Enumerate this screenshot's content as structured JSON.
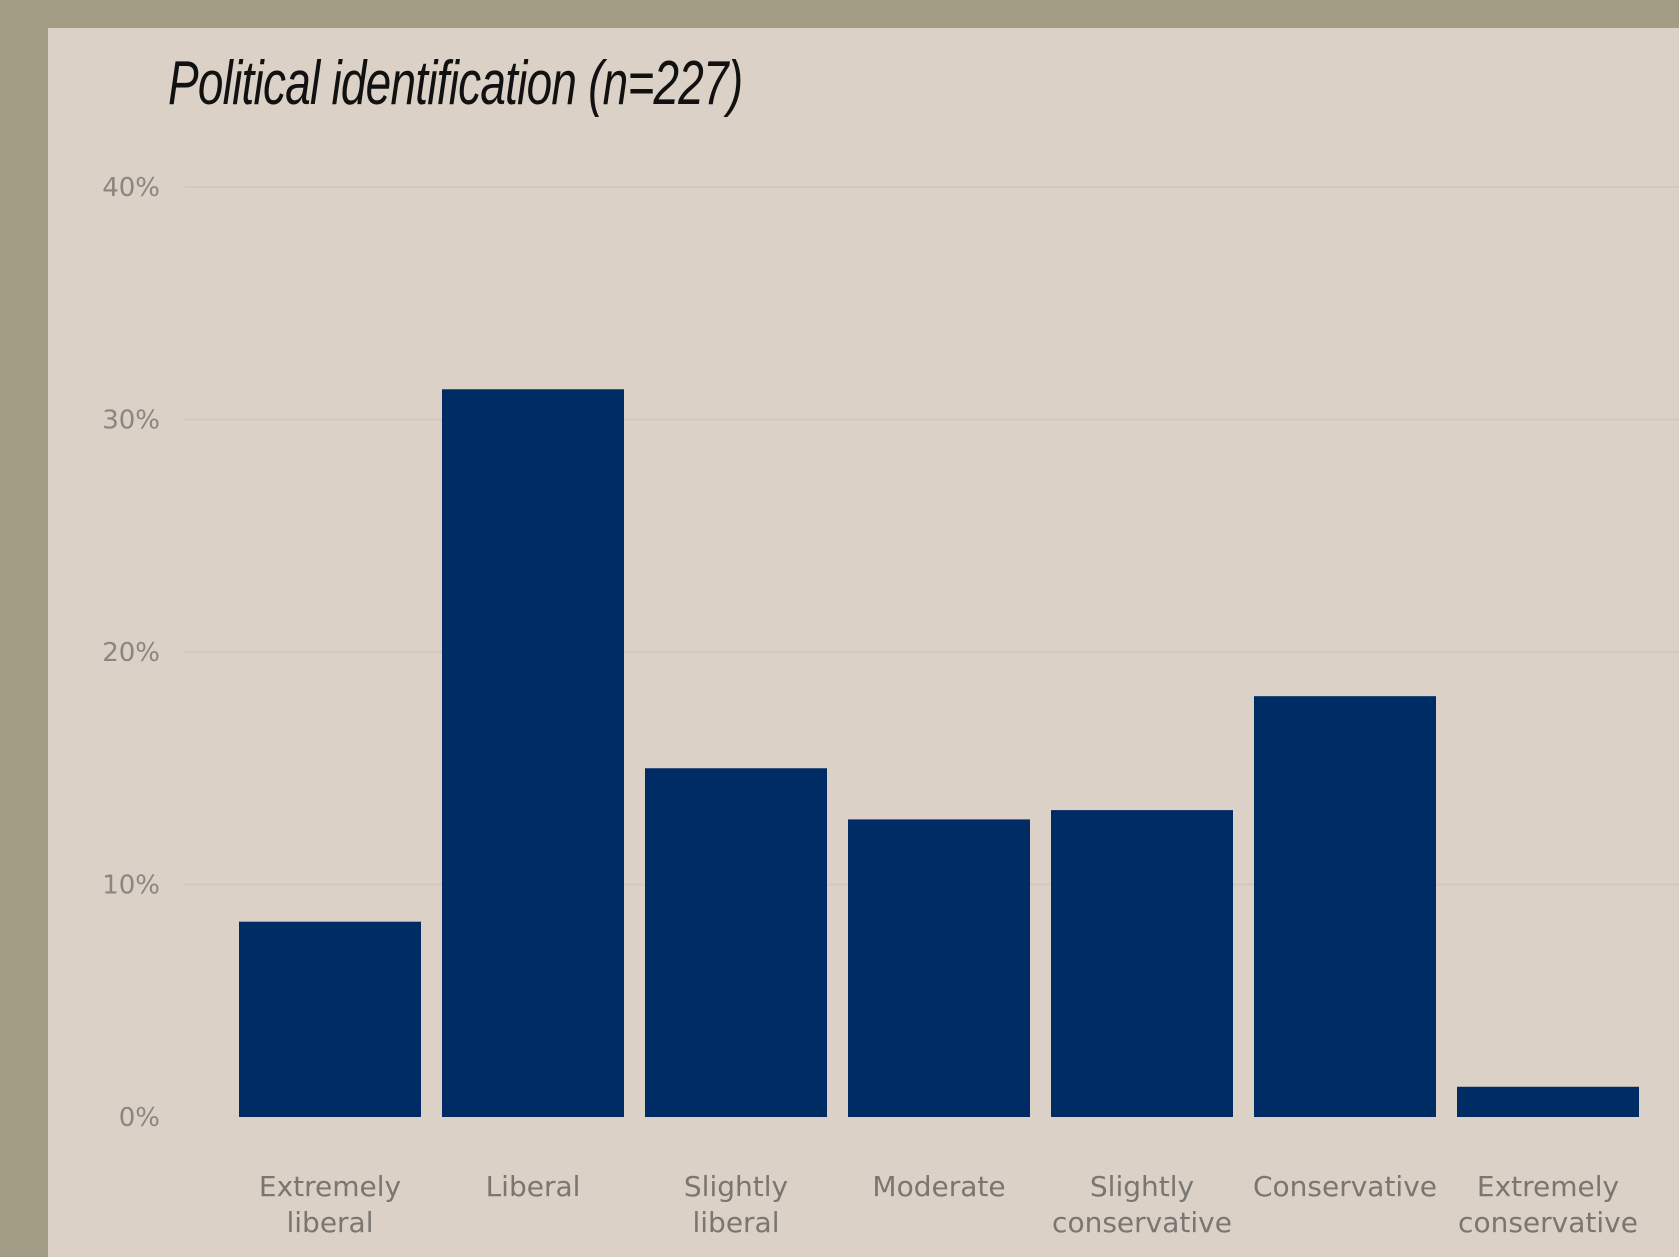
{
  "colors": {
    "outer_background": "#a39c84",
    "panel_background": "#dbd1c6",
    "bar": "#002c66",
    "gridline": "#d2c8bd",
    "tick_text": "#8a8680"
  },
  "chart_data": {
    "type": "bar",
    "title": "Political identification (n=227)",
    "xlabel": "",
    "ylabel": "",
    "ylim": [
      0,
      40
    ],
    "y_ticks": [
      0,
      10,
      20,
      30,
      40
    ],
    "y_tick_labels": [
      "0%",
      "10%",
      "20%",
      "30%",
      "40%"
    ],
    "grid": true,
    "legend": "none",
    "categories": [
      [
        "Extremely",
        "liberal"
      ],
      [
        "Liberal"
      ],
      [
        "Slightly",
        "liberal"
      ],
      [
        "Moderate"
      ],
      [
        "Slightly",
        "conservative"
      ],
      [
        "Conservative"
      ],
      [
        "Extremely",
        "conservative"
      ]
    ],
    "values": [
      8.4,
      31.3,
      15.0,
      12.8,
      13.2,
      18.1,
      1.3
    ]
  }
}
